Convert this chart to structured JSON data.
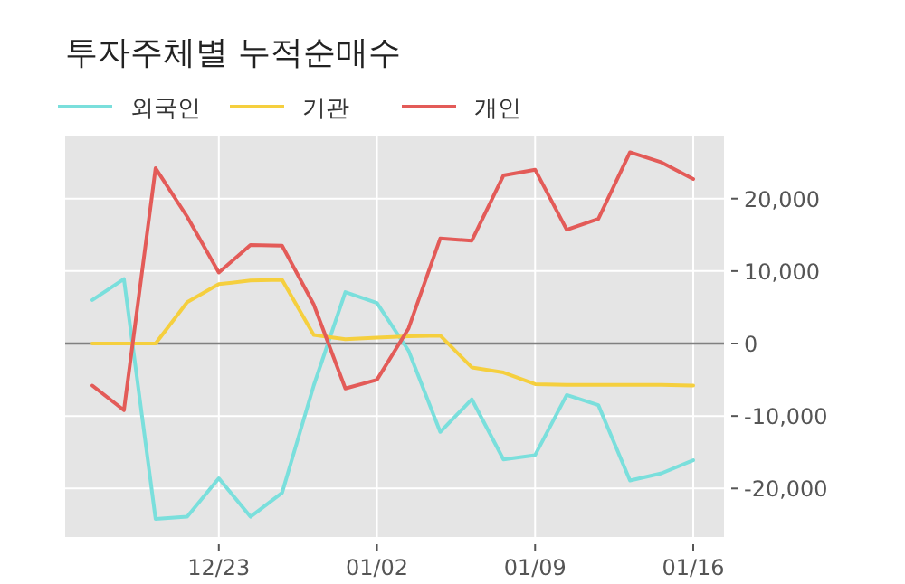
{
  "chart_data": {
    "type": "line",
    "title": "투자주체별 누적순매수",
    "categories": [
      null,
      null,
      null,
      null,
      "12/23",
      null,
      null,
      null,
      null,
      "01/02",
      null,
      null,
      null,
      null,
      "01/09",
      null,
      null,
      null,
      null,
      "01/16"
    ],
    "series": [
      {
        "name": "외국인",
        "color": "#7adfdc",
        "values": [
          6000,
          8900,
          -24200,
          -23900,
          -18600,
          -23900,
          -20600,
          -5800,
          7100,
          5600,
          -1000,
          -12200,
          -7700,
          -16000,
          -15400,
          -7100,
          -8500,
          -18900,
          -17900,
          -16100
        ]
      },
      {
        "name": "기관",
        "color": "#f5cf3e",
        "values": [
          0,
          0,
          0,
          5700,
          8200,
          8700,
          8800,
          1200,
          600,
          800,
          1000,
          1100,
          -3300,
          -4000,
          -5600,
          -5700,
          -5700,
          -5700,
          -5700,
          -5800
        ]
      },
      {
        "name": "개인",
        "color": "#e35b58",
        "values": [
          -5800,
          -9200,
          24200,
          17500,
          9800,
          13600,
          13500,
          5400,
          -6200,
          -5000,
          2100,
          14500,
          14200,
          23200,
          24000,
          15700,
          17200,
          26400,
          25000,
          22700
        ]
      }
    ],
    "ylim": [
      -26700,
      28700
    ],
    "yticks": [
      {
        "value": -20000,
        "label": "-20,000"
      },
      {
        "value": -10000,
        "label": "-10,000"
      },
      0,
      {
        "value": 10000,
        "label": "10,000"
      },
      {
        "value": 20000,
        "label": "20,000"
      }
    ],
    "ref_lines": [
      {
        "axis": "y",
        "value": 0,
        "color": "#808080"
      }
    ],
    "grid": true,
    "legend": "top left"
  }
}
